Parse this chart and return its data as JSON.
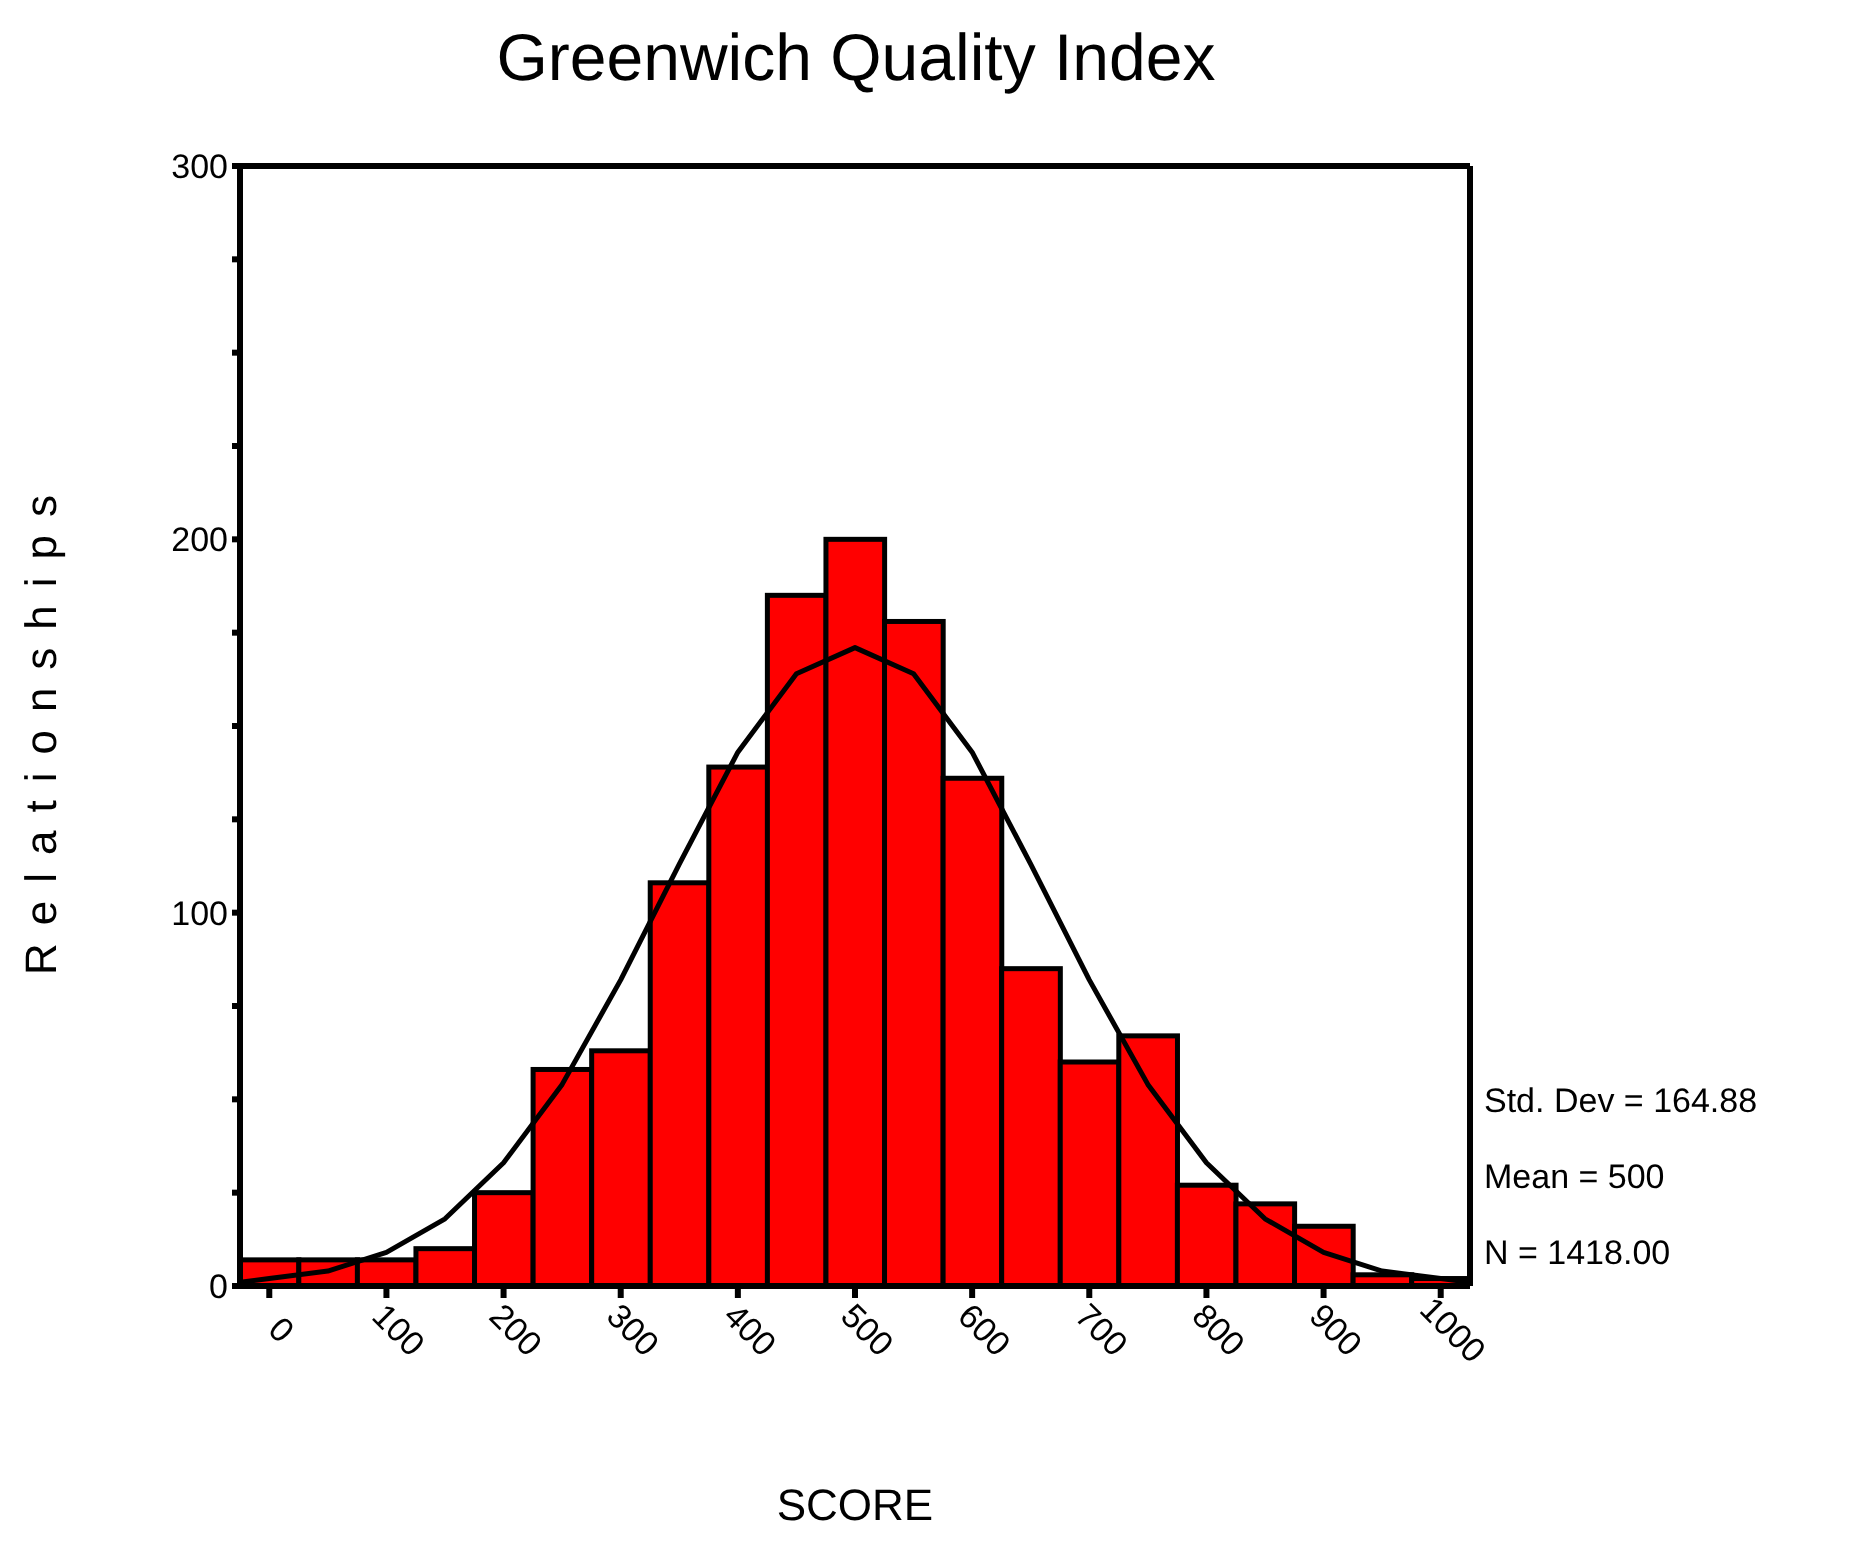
{
  "chart_data": {
    "type": "histogram",
    "title": "Greenwich Quality Index",
    "xlabel": "SCORE",
    "ylabel": "Relationships",
    "bins": [
      -25,
      25,
      75,
      125,
      175,
      225,
      275,
      325,
      375,
      425,
      475,
      525,
      575,
      625,
      675,
      725,
      775,
      825,
      875,
      925,
      975,
      1025
    ],
    "values": [
      7,
      7,
      7,
      10,
      25,
      58,
      63,
      108,
      139,
      185,
      200,
      178,
      136,
      85,
      60,
      67,
      27,
      22,
      16,
      3,
      2
    ],
    "color": "#ff0000",
    "series": [
      {
        "type": "line",
        "color": "#000000",
        "x": [
          -25,
          0,
          50,
          100,
          150,
          200,
          250,
          300,
          350,
          400,
          450,
          500,
          550,
          600,
          650,
          700,
          750,
          800,
          850,
          900,
          950,
          1000,
          1025
        ],
        "values": [
          1,
          2,
          4,
          9,
          18,
          33,
          54,
          82,
          113,
          143,
          164,
          171,
          164,
          143,
          113,
          82,
          54,
          33,
          18,
          9,
          4,
          2,
          1
        ]
      }
    ],
    "xlim": [
      -25,
      1025
    ],
    "xticks": [
      0,
      100,
      200,
      300,
      400,
      500,
      600,
      700,
      800,
      900,
      1000
    ],
    "ylim": [
      0,
      300
    ],
    "yticks": [
      0,
      {
        "value": 25,
        "label": null
      },
      {
        "value": 50,
        "label": null
      },
      {
        "value": 75,
        "label": null
      },
      100,
      {
        "value": 125,
        "label": null
      },
      {
        "value": 150,
        "label": null
      },
      {
        "value": 175,
        "label": null
      },
      200,
      {
        "value": 225,
        "label": null
      },
      {
        "value": 250,
        "label": null
      },
      {
        "value": 275,
        "label": null
      },
      300
    ],
    "annotations": [
      "Std. Dev = 164.88",
      "Mean = 500",
      "N = 1418.00"
    ]
  }
}
